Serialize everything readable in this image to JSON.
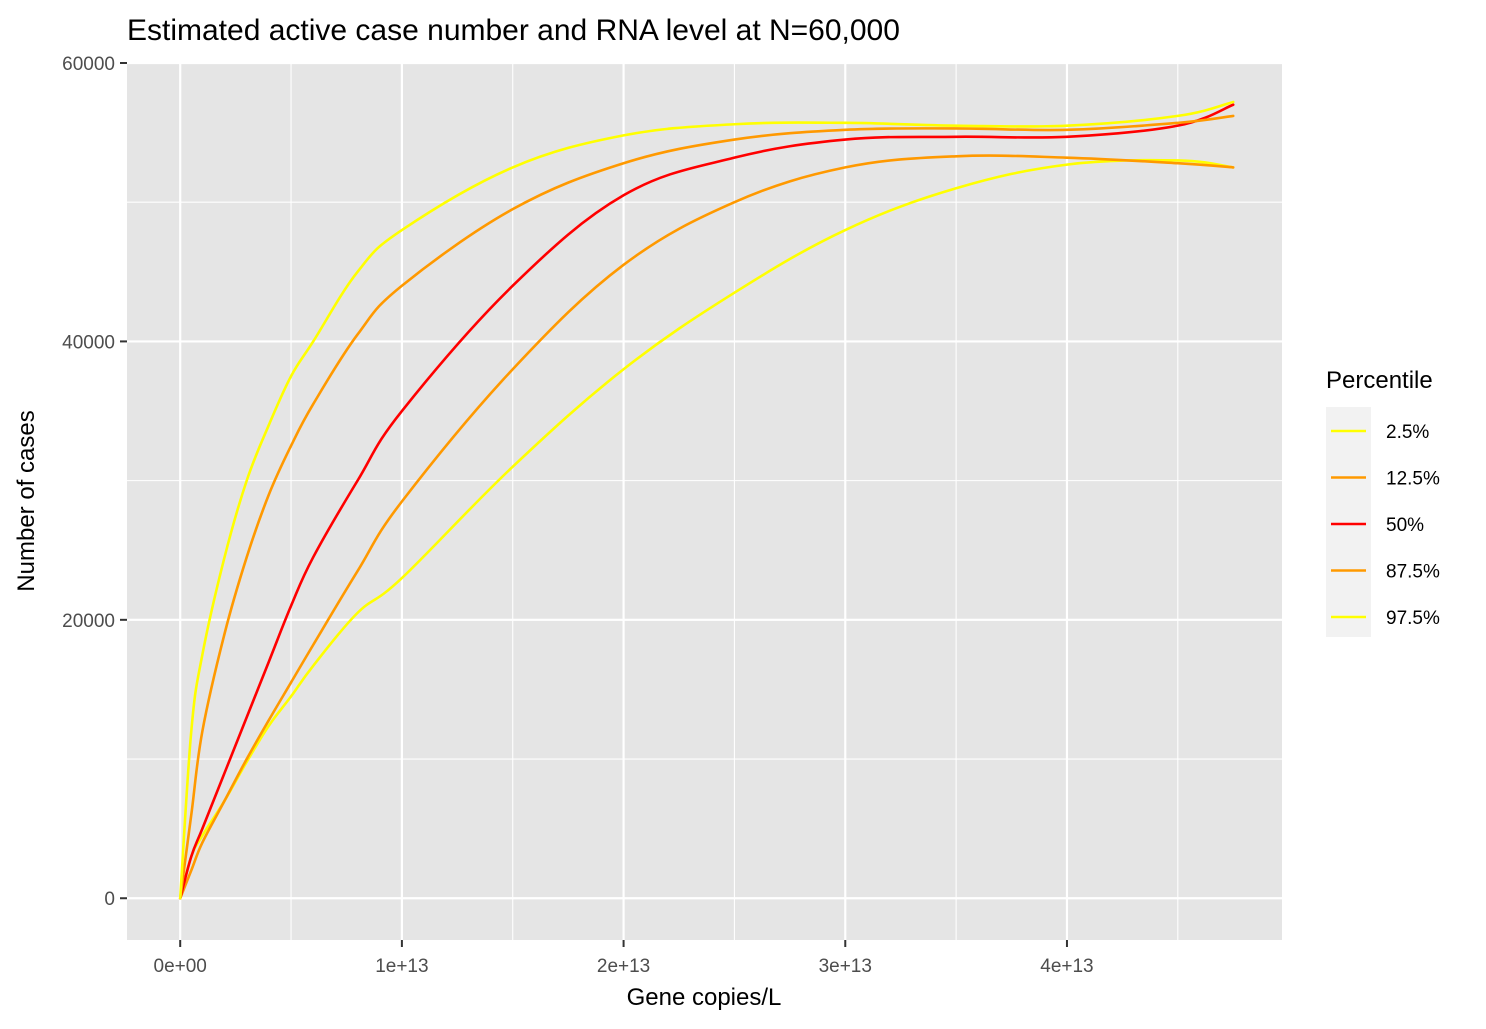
{
  "chart_data": {
    "type": "line",
    "title": "Estimated active case number and RNA level at N=60,000",
    "xlabel": "Gene copies/L",
    "ylabel": "Number of cases",
    "xlim": [
      -2400000000000.0,
      49700000000000.0
    ],
    "ylim": [
      -3000,
      60000
    ],
    "x_ticks": [
      0,
      10000000000000.0,
      20000000000000.0,
      30000000000000.0,
      40000000000000.0
    ],
    "x_tick_labels": [
      "0e+00",
      "1e+13",
      "2e+13",
      "3e+13",
      "4e+13"
    ],
    "y_ticks": [
      0,
      20000,
      40000,
      60000
    ],
    "y_tick_labels": [
      "0",
      "20000",
      "40000",
      "60000"
    ],
    "grid": true,
    "legend": {
      "title": "Percentile",
      "placement": "right"
    },
    "series": [
      {
        "name": "2.5%",
        "color": "#FFFF00",
        "x": [
          0,
          500000000000.0,
          1000000000000.0,
          2000000000000.0,
          3000000000000.0,
          4000000000000.0,
          5000000000000.0,
          6000000000000.0,
          8000000000000.0,
          10000000000000.0,
          15000000000000.0,
          20000000000000.0,
          25000000000000.0,
          30000000000000.0,
          35000000000000.0,
          40000000000000.0,
          45000000000000.0,
          47500000000000.0
        ],
        "y": [
          0,
          3000,
          4500,
          7000,
          9800,
          12400,
          14500,
          16700,
          20500,
          23000,
          31000,
          38000,
          43500,
          48000,
          51000,
          52700,
          53000,
          52500
        ]
      },
      {
        "name": "12.5%",
        "color": "#FF9900",
        "x": [
          0,
          500000000000.0,
          1000000000000.0,
          2000000000000.0,
          3000000000000.0,
          4000000000000.0,
          5000000000000.0,
          6000000000000.0,
          8000000000000.0,
          10000000000000.0,
          15000000000000.0,
          20000000000000.0,
          25000000000000.0,
          30000000000000.0,
          35000000000000.0,
          40000000000000.0,
          45000000000000.0,
          47500000000000.0
        ],
        "y": [
          0,
          2000,
          4000,
          7000,
          10000,
          12800,
          15500,
          18200,
          23500,
          28500,
          38000,
          45500,
          50000,
          52500,
          53300,
          53200,
          52800,
          52500
        ]
      },
      {
        "name": "50%",
        "color": "#FF0000",
        "x": [
          0,
          500000000000.0,
          1000000000000.0,
          2000000000000.0,
          3000000000000.0,
          4000000000000.0,
          5000000000000.0,
          6000000000000.0,
          8000000000000.0,
          10000000000000.0,
          15000000000000.0,
          20000000000000.0,
          25000000000000.0,
          30000000000000.0,
          35000000000000.0,
          40000000000000.0,
          45000000000000.0,
          47500000000000.0
        ],
        "y": [
          0,
          3000,
          5000,
          9000,
          13000,
          17000,
          21000,
          24500,
          30000,
          35000,
          44000,
          50500,
          53200,
          54500,
          54700,
          54700,
          55500,
          57000
        ]
      },
      {
        "name": "87.5%",
        "color": "#FF9900",
        "x": [
          0,
          500000000000.0,
          1000000000000.0,
          2000000000000.0,
          3000000000000.0,
          4000000000000.0,
          5000000000000.0,
          6000000000000.0,
          8000000000000.0,
          10000000000000.0,
          15000000000000.0,
          20000000000000.0,
          25000000000000.0,
          30000000000000.0,
          35000000000000.0,
          40000000000000.0,
          45000000000000.0,
          47500000000000.0
        ],
        "y": [
          0,
          6000,
          12000,
          19000,
          24500,
          29000,
          32500,
          35500,
          40500,
          44000,
          49500,
          52800,
          54500,
          55200,
          55300,
          55200,
          55700,
          56200
        ]
      },
      {
        "name": "97.5%",
        "color": "#FFFF00",
        "x": [
          0,
          500000000000.0,
          1000000000000.0,
          2000000000000.0,
          3000000000000.0,
          4000000000000.0,
          5000000000000.0,
          6000000000000.0,
          8000000000000.0,
          10000000000000.0,
          15000000000000.0,
          20000000000000.0,
          25000000000000.0,
          30000000000000.0,
          35000000000000.0,
          40000000000000.0,
          45000000000000.0,
          47500000000000.0
        ],
        "y": [
          0,
          12000,
          17500,
          24500,
          30000,
          34000,
          37500,
          40000,
          45000,
          48000,
          52500,
          54800,
          55600,
          55700,
          55500,
          55500,
          56200,
          57200
        ]
      }
    ]
  }
}
